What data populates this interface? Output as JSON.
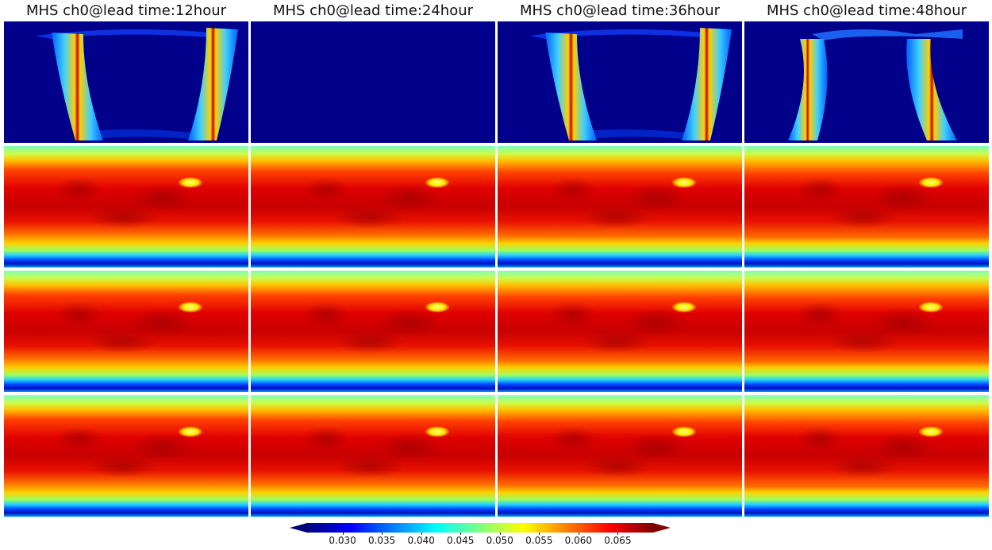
{
  "chart_data": {
    "type": "heatmap",
    "columns": [
      {
        "title": "MHS ch0@lead time:12hour"
      },
      {
        "title": "MHS ch0@lead time:24hour"
      },
      {
        "title": "MHS ch0@lead time:36hour"
      },
      {
        "title": "MHS ch0@lead time:48hour"
      }
    ],
    "rows": 4,
    "row_descriptions": [
      "swath",
      "global",
      "global",
      "global"
    ],
    "row0_pattern": [
      "swath",
      "empty",
      "swath",
      "swath-wide"
    ],
    "colormap": "jet",
    "colorbar": {
      "vmin": 0.0255,
      "vmax": 0.0695,
      "ticks": [
        0.03,
        0.035,
        0.04,
        0.045,
        0.05,
        0.055,
        0.06,
        0.065
      ],
      "tick_labels": [
        "0.030",
        "0.035",
        "0.040",
        "0.045",
        "0.050",
        "0.055",
        "0.060",
        "0.065"
      ],
      "extend": "both",
      "orientation": "horizontal"
    },
    "colors": {
      "jet_stops": [
        "#00007f",
        "#0000ff",
        "#007fff",
        "#00ffff",
        "#7fff7f",
        "#ffff00",
        "#ff7f00",
        "#ff0000",
        "#7f0000"
      ],
      "background": "#00008b"
    }
  }
}
